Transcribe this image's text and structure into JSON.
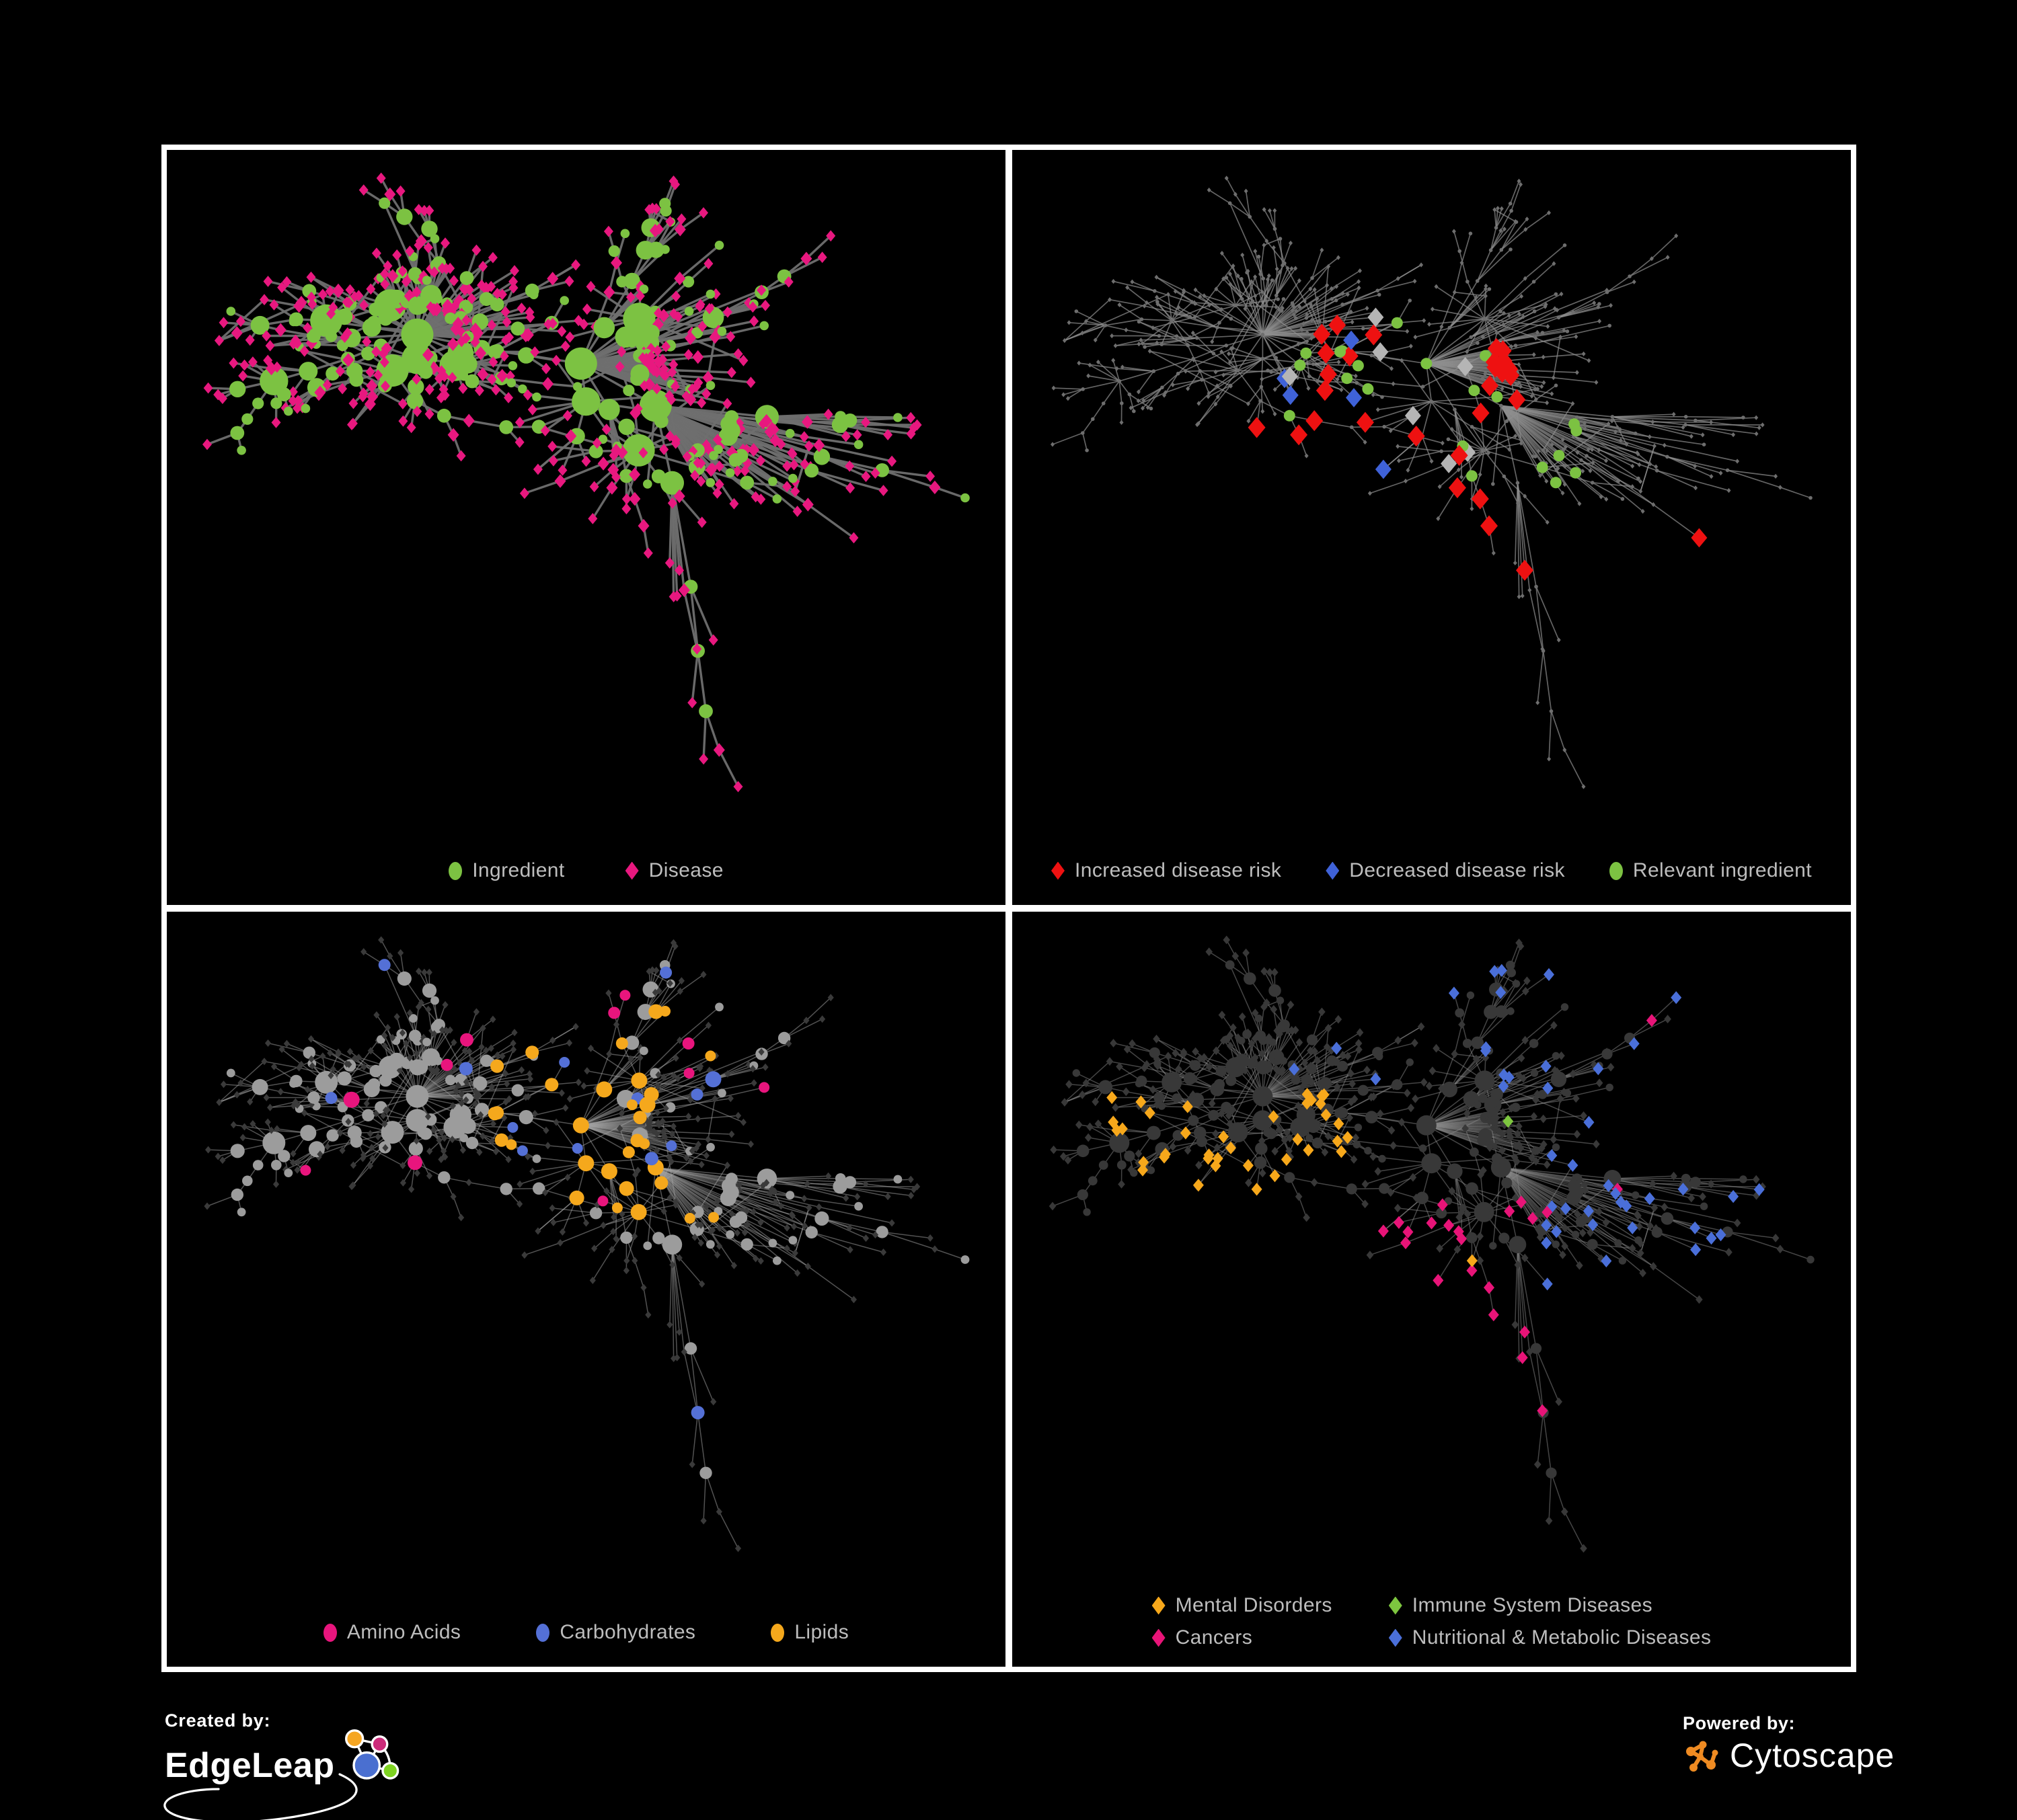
{
  "page": {
    "background": "#000000",
    "panel_border": "#ffffff"
  },
  "network": {
    "node_count": 620,
    "seed": 9,
    "chain_prob": 0.26,
    "pa_power": 1.5,
    "pa_bias": 0.4,
    "extra_edges": 48,
    "edge_color_note": "gray links, same topology repeated in all four panels"
  },
  "panels": [
    {
      "id": "ingredient-disease",
      "legend": [
        {
          "label": "Ingredient",
          "shape": "circle",
          "color": "#7cc242"
        },
        {
          "label": "Disease",
          "shape": "diamond",
          "color": "#e8187f"
        }
      ],
      "style": {
        "mode": "typed",
        "edge": {
          "color": "#6f6f6f",
          "width": 3.4,
          "opacity": 0.95
        },
        "ingredient_color": "#7cc242",
        "disease_color": "#e8187f"
      }
    },
    {
      "id": "disease-risk",
      "legend": [
        {
          "label": "Increased disease risk",
          "shape": "diamond",
          "color": "#ee1111"
        },
        {
          "label": "Decreased disease risk",
          "shape": "diamond",
          "color": "#3f62d8"
        },
        {
          "label": "Relevant ingredient",
          "shape": "circle",
          "color": "#7cc242"
        }
      ],
      "style": {
        "mode": "risk",
        "edge": {
          "color": "#8f8f8f",
          "width": 1.7,
          "opacity": 0.7
        },
        "base_color": "#6e6e6e",
        "highlights": {
          "increased": {
            "color": "#ee1111",
            "max": 28,
            "prob": 0.3
          },
          "decreased": {
            "color": "#3f62d8",
            "max": 6,
            "prob": 0.08
          },
          "decreased_outer": {
            "color": "#3f62d8",
            "max": 2,
            "prob": 0.15
          },
          "neutral": {
            "color": "#b5b5b5",
            "max": 7,
            "prob": 0.05
          },
          "relevant": {
            "color": "#7cc242",
            "max": 28,
            "prob": 0.28
          }
        }
      }
    },
    {
      "id": "compound-classes",
      "legend": [
        {
          "label": "Amino Acids",
          "shape": "circle",
          "color": "#e8157d"
        },
        {
          "label": "Carbohydrates",
          "shape": "circle",
          "color": "#5470d6"
        },
        {
          "label": "Lipids",
          "shape": "circle",
          "color": "#f5a81c"
        }
      ],
      "style": {
        "mode": "classes",
        "edge": {
          "color": "#a3a3a3",
          "width": 1.5,
          "opacity": 0.5
        },
        "disease_color": "#3a3a3a",
        "base_color": "#9c9c9c",
        "classes": {
          "lipids": {
            "color": "#f5a81c",
            "max": 64,
            "prob_cluster": 0.5,
            "prob_scatter": 0.02
          },
          "carbs": {
            "color": "#5470d6",
            "max": 19,
            "prob_cluster": 0.15,
            "prob_scatter": 0.012
          },
          "amino": {
            "color": "#e8157d",
            "max": 24,
            "prob_scatter": 0.055
          }
        }
      }
    },
    {
      "id": "disease-categories",
      "legend": [
        {
          "label": "Mental Disorders",
          "shape": "diamond",
          "color": "#f7a81b"
        },
        {
          "label": "Immune System Diseases",
          "shape": "diamond",
          "color": "#7dc63f"
        },
        {
          "label": "Cancers",
          "shape": "diamond",
          "color": "#e81478"
        },
        {
          "label": "Nutritional & Metabolic Diseases",
          "shape": "diamond",
          "color": "#4a6fd9"
        }
      ],
      "style": {
        "mode": "categories",
        "edge": {
          "color": "#8a8a8a",
          "width": 1.5,
          "opacity": 0.5
        },
        "base_color": "#383838",
        "categories": {
          "mental": {
            "color": "#f7a81b",
            "max": 95,
            "prob": 0.55
          },
          "cancers": {
            "color": "#e81478",
            "max": 60,
            "prob": 0.33
          },
          "nutritional": {
            "color": "#4a6fd9",
            "max": 75,
            "prob": 0.3
          },
          "immune": {
            "color": "#7dc63f",
            "max": 13,
            "prob": 0.02
          }
        }
      }
    }
  ],
  "footer": {
    "created_by": "Created by:",
    "created_brand": "EdgeLeap",
    "powered_by": "Powered by:",
    "powered_brand": "Cytoscape",
    "edgeleap_colors": {
      "orange": "#f5a623",
      "pink": "#cc2b7a",
      "blue": "#4a6fd0",
      "green": "#7ed321"
    },
    "cytoscape_orange": "#ef8b22"
  }
}
